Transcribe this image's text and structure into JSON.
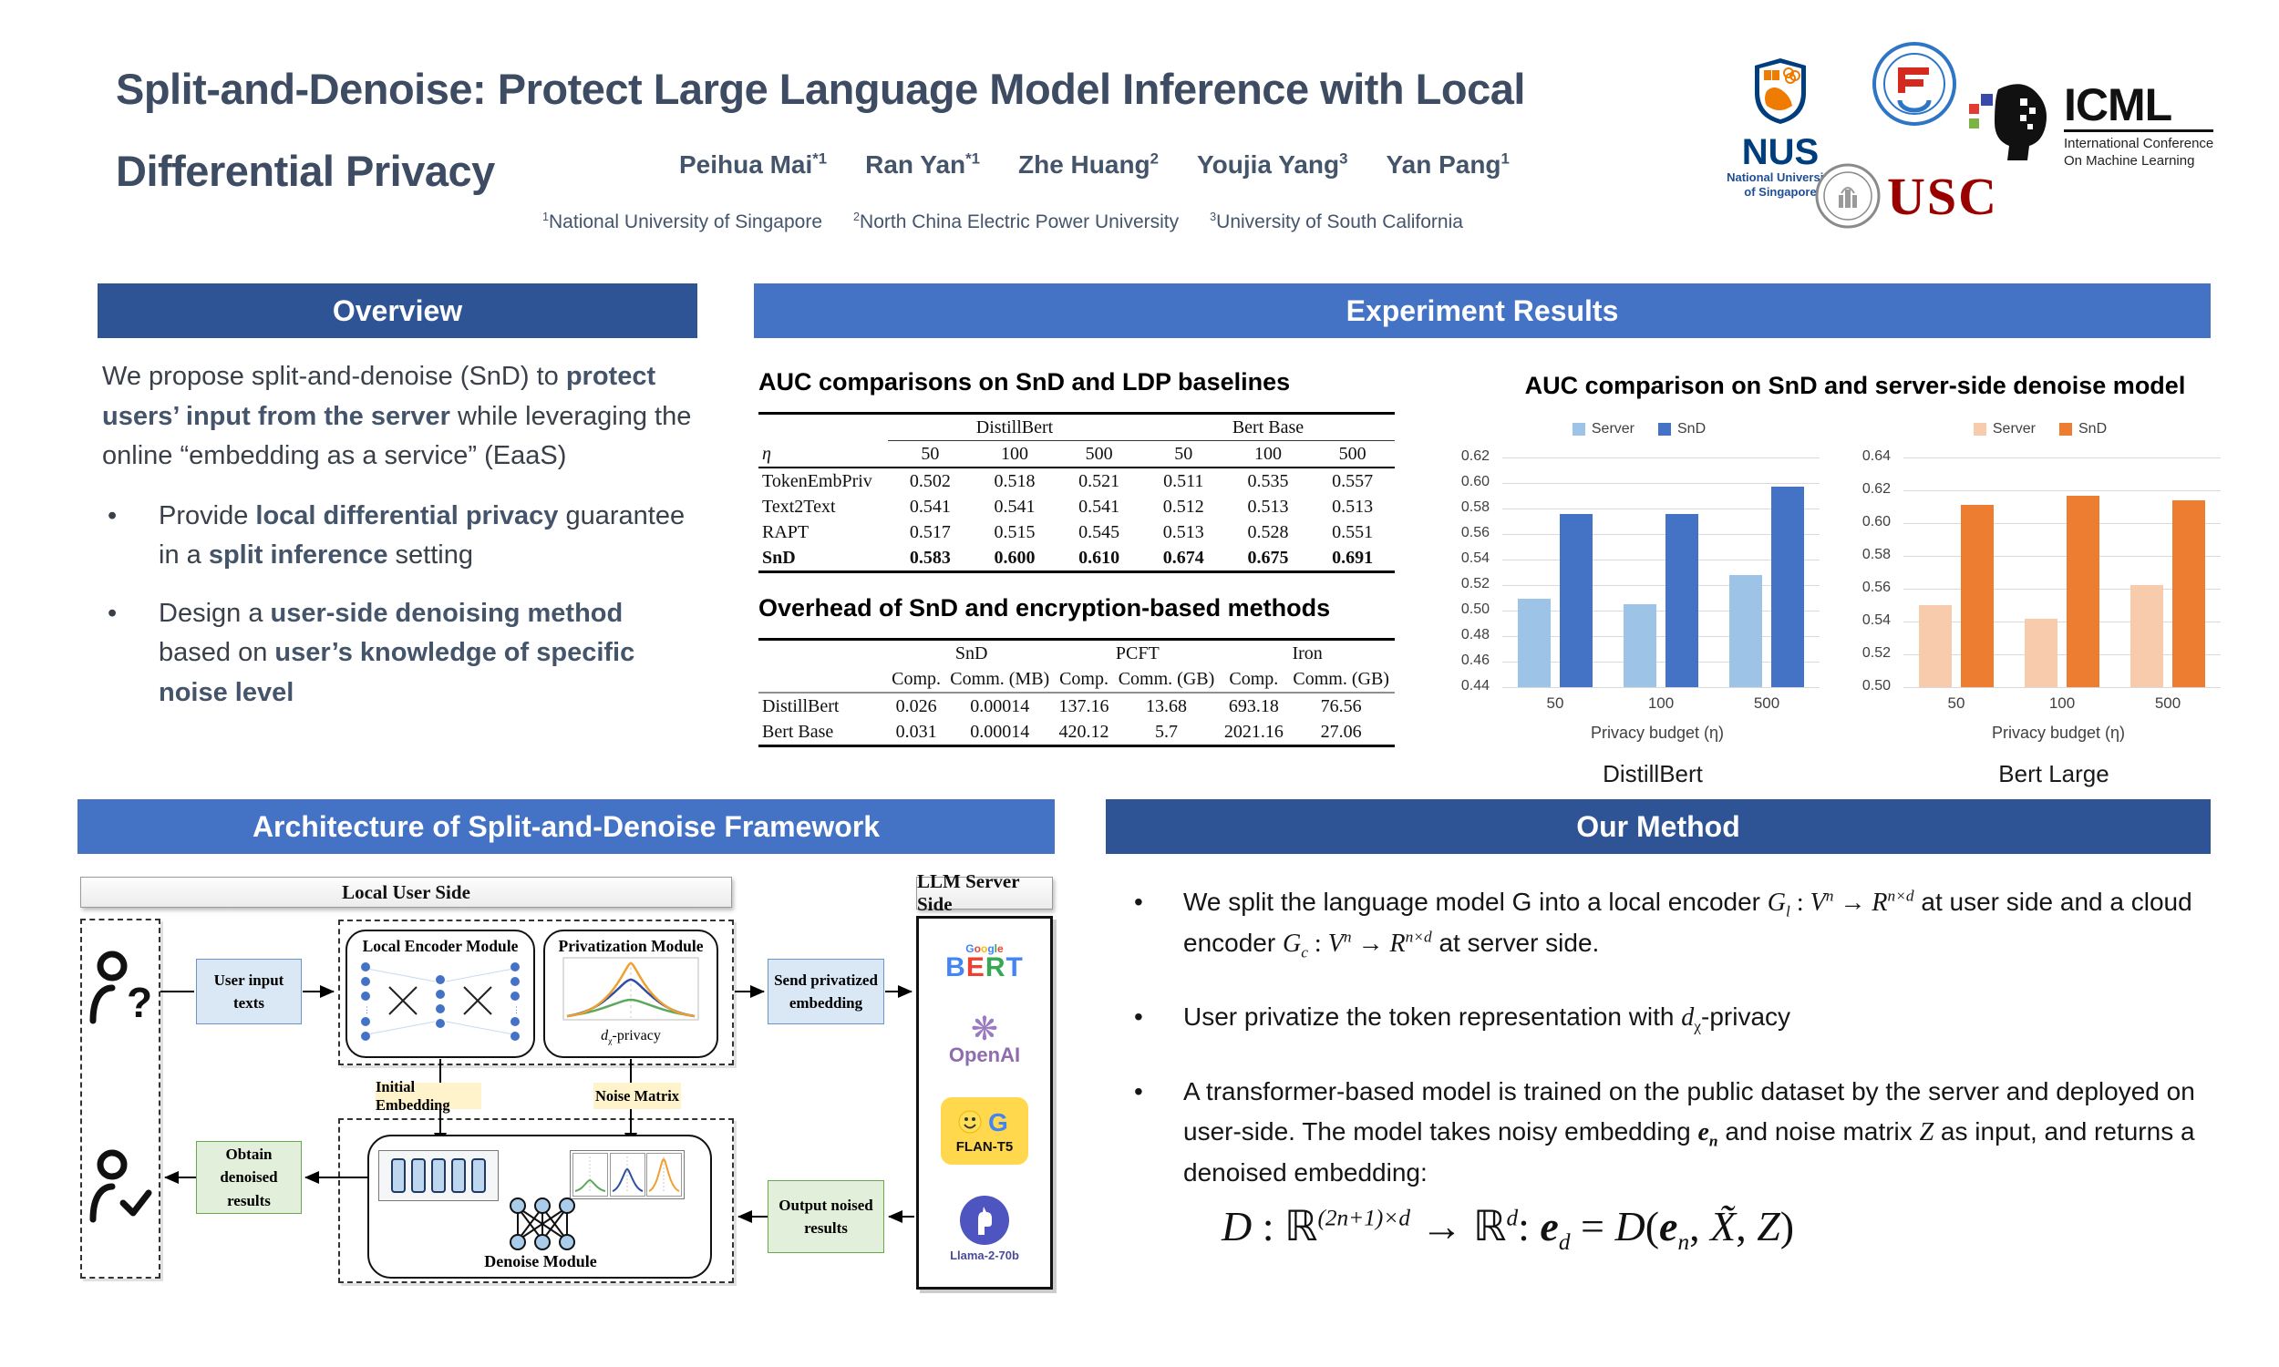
{
  "colors": {
    "accent_dark": "#2F5496",
    "accent_light": "#4472C4",
    "title_text": "#3E4C63"
  },
  "poster": {
    "title_line1": "Split-and-Denoise: Protect Large Language Model Inference with Local",
    "title_line2": "Differential Privacy",
    "authors": [
      {
        "name": "Peihua Mai",
        "sup": "*1"
      },
      {
        "name": "Ran Yan",
        "sup": "*1"
      },
      {
        "name": "Zhe Huang",
        "sup": "2"
      },
      {
        "name": "Youjia Yang",
        "sup": "3"
      },
      {
        "name": "Yan Pang",
        "sup": "1"
      }
    ],
    "affiliations": [
      {
        "sup": "1",
        "name": "National University of Singapore"
      },
      {
        "sup": "2",
        "name": "North China Electric Power University"
      },
      {
        "sup": "3",
        "name": "University of South California"
      }
    ]
  },
  "logos": {
    "nus_acronym": "NUS",
    "nus_name1": "National University",
    "nus_name2": "of Singapore",
    "usc": "USC",
    "icml": "ICML",
    "icml_sub1": "International Conference",
    "icml_sub2": "On Machine Learning"
  },
  "overview": {
    "header": "Overview",
    "intro": [
      {
        "t": "We propose split-and-denoise (SnD) to "
      },
      {
        "t": "protect users’ input from the server",
        "b": 1,
        "c": "nav"
      },
      {
        "t": " while leveraging the online “embedding as a service” (EaaS)"
      }
    ],
    "bullets": [
      [
        {
          "t": "Provide "
        },
        {
          "t": "local differential privacy",
          "b": 1,
          "c": "nav"
        },
        {
          "t": " guarantee in a "
        },
        {
          "t": "split inference",
          "b": 1,
          "c": "nav"
        },
        {
          "t": " setting"
        }
      ],
      [
        {
          "t": "Design a "
        },
        {
          "t": "user-side denoising method",
          "b": 1,
          "c": "nav"
        },
        {
          "t": " based on "
        },
        {
          "t": "user’s knowledge of specific noise level",
          "b": 1,
          "c": "nav"
        }
      ]
    ]
  },
  "experiment": {
    "header": "Experiment Results",
    "charts_title": "AUC comparison on SnD and server-side denoise model",
    "table1": {
      "title": "AUC comparisons on SnD and LDP baselines",
      "css": "t1",
      "group_rule": true,
      "group_headers": [
        {
          "label": "DistillBert",
          "span": 3
        },
        {
          "label": "Bert Base",
          "span": 3
        }
      ],
      "col_headers": [
        "η",
        "50",
        "100",
        "500",
        "50",
        "100",
        "500"
      ],
      "rows": [
        {
          "label": "TokenEmbPriv",
          "values": [
            "0.502",
            "0.518",
            "0.521",
            "0.511",
            "0.535",
            "0.557"
          ]
        },
        {
          "label": "Text2Text",
          "values": [
            "0.541",
            "0.541",
            "0.541",
            "0.512",
            "0.513",
            "0.513"
          ]
        },
        {
          "label": "RAPT",
          "values": [
            "0.517",
            "0.515",
            "0.545",
            "0.513",
            "0.528",
            "0.551"
          ]
        },
        {
          "label": "SnD",
          "values": [
            "0.583",
            "0.600",
            "0.610",
            "0.674",
            "0.675",
            "0.691"
          ],
          "bold": true
        }
      ]
    },
    "table2": {
      "title": "Overhead of SnD and encryption-based methods",
      "css": "t2",
      "group_rule": false,
      "group_headers": [
        {
          "label": "SnD",
          "span": 2
        },
        {
          "label": "PCFT",
          "span": 2
        },
        {
          "label": "Iron",
          "span": 2
        }
      ],
      "col_headers": [
        "",
        "Comp.",
        "Comm. (MB)",
        "Comp.",
        "Comm. (GB)",
        "Comp.",
        "Comm. (GB)"
      ],
      "rows": [
        {
          "label": "DistillBert",
          "values": [
            "0.026",
            "0.00014",
            "137.16",
            "13.68",
            "693.18",
            "76.56"
          ]
        },
        {
          "label": "Bert Base",
          "values": [
            "0.031",
            "0.00014",
            "420.12",
            "5.7",
            "2021.16",
            "27.06"
          ]
        }
      ]
    }
  },
  "chart_data": [
    {
      "type": "bar",
      "title": "AUC comparison on SnD and server-side denoise model",
      "caption": "DistillBert",
      "categories": [
        "50",
        "100",
        "500"
      ],
      "series": [
        {
          "name": "Server",
          "color": "#9DC3E6",
          "values": [
            0.509,
            0.505,
            0.528
          ]
        },
        {
          "name": "SnD",
          "color": "#4472C4",
          "values": [
            0.576,
            0.5755,
            0.597
          ]
        }
      ],
      "xlabel": "Privacy budget (η)",
      "ylim": [
        0.44,
        0.62
      ],
      "ytick_step": 0.02,
      "grid": true,
      "legend_position": "top"
    },
    {
      "type": "bar",
      "title": "AUC comparison on SnD and server-side denoise model",
      "caption": "Bert Large",
      "categories": [
        "50",
        "100",
        "500"
      ],
      "series": [
        {
          "name": "Server",
          "color": "#F8CBAD",
          "values": [
            0.55,
            0.5415,
            0.562
          ]
        },
        {
          "name": "SnD",
          "color": "#ED7D31",
          "values": [
            0.611,
            0.6165,
            0.614
          ]
        }
      ],
      "xlabel": "Privacy budget (η)",
      "ylim": [
        0.5,
        0.64
      ],
      "ytick_step": 0.02,
      "grid": true,
      "legend_position": "top"
    }
  ],
  "architecture": {
    "header": "Architecture of Split-and-Denoise Framework",
    "local_side": "Local User Side",
    "server_side": "LLM Server Side",
    "user_input": "User input texts",
    "local_encoder": "Local Encoder Module",
    "privatization": "Privatization Module",
    "dx_privacy": [
      {
        "t": "d",
        "i": 1
      },
      {
        "t": "χ",
        "sub": 1
      },
      {
        "t": "-privacy"
      }
    ],
    "send_embedding": "Send privatized embedding",
    "initial_embedding": "Initial Embedding",
    "noise_matrix": "Noise Matrix",
    "denoise": "Denoise Module",
    "obtain_results": "Obtain denoised results",
    "output_results": "Output noised results",
    "server_models": {
      "google_letters": [
        {
          "ch": "G",
          "color": "#4285F4"
        },
        {
          "ch": "o",
          "color": "#EA4335"
        },
        {
          "ch": "o",
          "color": "#FBBC05"
        },
        {
          "ch": "g",
          "color": "#4285F4"
        },
        {
          "ch": "l",
          "color": "#34A853"
        },
        {
          "ch": "e",
          "color": "#EA4335"
        }
      ],
      "bert_letters": [
        {
          "ch": "B",
          "color": "#4285F4"
        },
        {
          "ch": "E",
          "color": "#EA4335"
        },
        {
          "ch": "R",
          "color": "#34A853"
        },
        {
          "ch": "T",
          "color": "#4285F4"
        }
      ],
      "openai": "OpenAI",
      "flan": "FLAN-T5",
      "llama": "Llama-2-70b"
    }
  },
  "method": {
    "header": "Our Method",
    "bullets": [
      [
        {
          "t": "We split the language model G into a local encoder "
        },
        {
          "t": "G",
          "c": "m",
          "i": 1
        },
        {
          "t": "l",
          "c": "m",
          "i": 1,
          "sub": 1
        },
        {
          "t": " : ",
          "c": "m"
        },
        {
          "t": "V",
          "c": "m",
          "i": 1
        },
        {
          "t": "n",
          "c": "m",
          "i": 1,
          "sup": 1
        },
        {
          "t": " → ",
          "c": "m"
        },
        {
          "t": "R",
          "c": "m",
          "i": 1
        },
        {
          "t": "n×d",
          "c": "m",
          "i": 1,
          "sup": 1
        },
        {
          "t": " at user side and a cloud encoder "
        },
        {
          "t": "G",
          "c": "m",
          "i": 1
        },
        {
          "t": "c",
          "c": "m",
          "i": 1,
          "sub": 1
        },
        {
          "t": " : ",
          "c": "m"
        },
        {
          "t": "V",
          "c": "m",
          "i": 1
        },
        {
          "t": "n",
          "c": "m",
          "i": 1,
          "sup": 1
        },
        {
          "t": " → ",
          "c": "m"
        },
        {
          "t": "R",
          "c": "m",
          "i": 1
        },
        {
          "t": "n×d",
          "c": "m",
          "i": 1,
          "sup": 1
        },
        {
          "t": " at server side."
        }
      ],
      [
        {
          "t": "User privatize the token representation with "
        },
        {
          "t": "d",
          "c": "m",
          "i": 1
        },
        {
          "t": "χ",
          "c": "m",
          "sub": 1
        },
        {
          "t": "-privacy"
        }
      ],
      [
        {
          "t": "A transformer-based model is trained on the public dataset by the server and deployed on user-side. The model takes noisy embedding "
        },
        {
          "t": "e",
          "c": "m",
          "i": 1,
          "b": 1
        },
        {
          "t": "n",
          "c": "m",
          "i": 1,
          "sub": 1,
          "b": 1
        },
        {
          "t": " and noise matrix "
        },
        {
          "t": "Z",
          "c": "m",
          "i": 1
        },
        {
          "t": " as input, and returns a denoised embedding:"
        }
      ]
    ],
    "formula": [
      {
        "t": "D",
        "i": 1
      },
      {
        "t": " : "
      },
      {
        "t": "ℝ"
      },
      {
        "t": "(2n+1)×d",
        "sup": 1,
        "i": 1
      },
      {
        "t": " → "
      },
      {
        "t": "ℝ"
      },
      {
        "t": "d",
        "sup": 1,
        "i": 1
      },
      {
        "t": ":   "
      },
      {
        "t": "e",
        "i": 1,
        "b": 1
      },
      {
        "t": "d",
        "sub": 1,
        "i": 1
      },
      {
        "t": " = "
      },
      {
        "t": "D",
        "i": 1
      },
      {
        "t": "("
      },
      {
        "t": "e",
        "i": 1,
        "b": 1
      },
      {
        "t": "n",
        "sub": 1,
        "i": 1
      },
      {
        "t": ", "
      },
      {
        "t": "X̃",
        "i": 1
      },
      {
        "t": ", "
      },
      {
        "t": "Z",
        "i": 1
      },
      {
        "t": ")"
      }
    ]
  }
}
